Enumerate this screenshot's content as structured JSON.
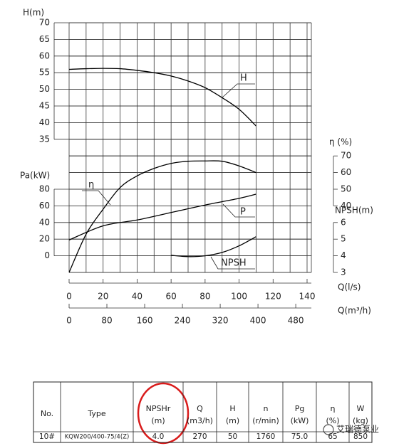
{
  "chart_data": {
    "type": "line",
    "xlabel": "Q(l/s)",
    "xlim": [
      0,
      140
    ],
    "xticks": [
      0,
      20,
      40,
      60,
      80,
      100,
      120,
      140
    ],
    "x2label": "Q(m³/h)",
    "x2lim": [
      0,
      504
    ],
    "x2ticks": [
      0,
      80,
      160,
      240,
      320,
      400,
      480
    ],
    "grid": true,
    "axes": [
      {
        "label": "H(m)",
        "side": "left",
        "ylim": [
          35,
          70
        ],
        "yticks": [
          35,
          40,
          45,
          50,
          55,
          60,
          65,
          70
        ]
      },
      {
        "label": "η (%)",
        "side": "right",
        "ylim": [
          40,
          70
        ],
        "yticks": [
          40,
          50,
          60,
          70
        ]
      },
      {
        "label": "Pa(kW)",
        "side": "left",
        "ylim": [
          0,
          80
        ],
        "yticks": [
          0,
          20,
          40,
          60,
          80
        ]
      },
      {
        "label": "NPSH(m)",
        "side": "right",
        "ylim": [
          3,
          6
        ],
        "yticks": [
          3,
          4,
          5,
          6
        ]
      }
    ],
    "series": [
      {
        "name": "H",
        "axis": 0,
        "color": "#000000",
        "x": [
          0,
          10,
          20,
          30,
          40,
          50,
          60,
          70,
          80,
          90,
          100,
          110
        ],
        "values": [
          56,
          56.2,
          56.3,
          56.2,
          55.7,
          55,
          54,
          52.5,
          50.5,
          47.5,
          44,
          39
        ]
      },
      {
        "name": "η",
        "axis": 1,
        "color": "#000000",
        "x": [
          0,
          10,
          20,
          30,
          40,
          50,
          60,
          70,
          80,
          90,
          100,
          110
        ],
        "values": [
          0,
          23,
          38,
          51,
          58,
          62.5,
          65.5,
          66.8,
          67,
          66.8,
          64,
          60
        ]
      },
      {
        "name": "P",
        "axis": 2,
        "color": "#000000",
        "x": [
          0,
          20,
          40,
          60,
          80,
          100,
          110
        ],
        "values": [
          19,
          36,
          43,
          52,
          61,
          69,
          74
        ]
      },
      {
        "name": "NPSH",
        "axis": 3,
        "color": "#000000",
        "x": [
          60,
          70,
          80,
          90,
          100,
          110
        ],
        "values": [
          4.03,
          3.95,
          4.0,
          4.2,
          4.6,
          5.15
        ]
      }
    ]
  },
  "table": {
    "headers": [
      [
        "No."
      ],
      [
        "Type"
      ],
      [
        "NPSHr",
        "(m)"
      ],
      [
        "Q",
        "(m3/h)"
      ],
      [
        "H",
        "(m)"
      ],
      [
        "n",
        "(r/min)"
      ],
      [
        "Pg",
        "(kW)"
      ],
      [
        "η",
        "(%)"
      ],
      [
        "W",
        "(kg)"
      ]
    ],
    "rows": [
      [
        "10#",
        "KQW200/400-75/4(Z)",
        "4.0",
        "270",
        "50",
        "1760",
        "75.0",
        "65",
        "850"
      ]
    ]
  },
  "watermark": "艾瑞德泵业"
}
